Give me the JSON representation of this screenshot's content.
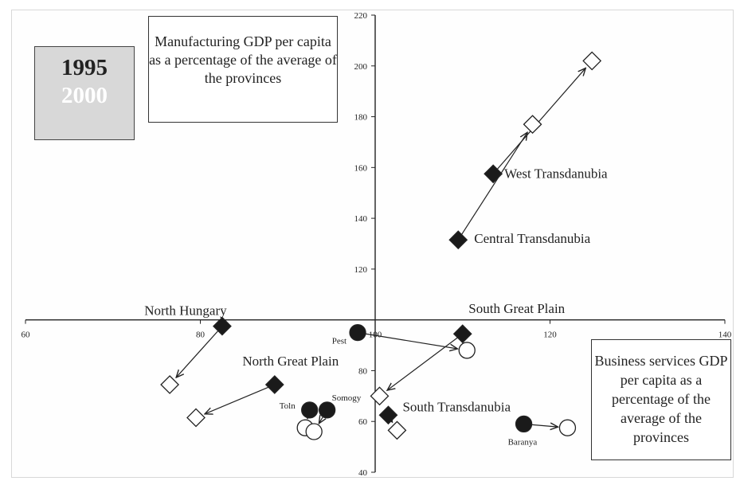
{
  "chart_data": {
    "type": "scatter",
    "x_axis": {
      "min": 60,
      "max": 140,
      "ticks": [
        60,
        80,
        100,
        120,
        140
      ]
    },
    "y_axis": {
      "min": 40,
      "max": 220,
      "ticks": [
        40,
        60,
        80,
        100,
        120,
        140,
        160,
        180,
        200,
        220
      ]
    },
    "axes_cross": {
      "x": 100,
      "y": 100
    },
    "legend": {
      "year_1995": "1995",
      "year_2000": "2000",
      "style_1995": "filled",
      "style_2000": "hollow white"
    },
    "y_title": "Manufacturing GDP per capita as a percentage of the average of the provinces",
    "x_title": "Business services GDP per capita as a percentage of the average of the provinces",
    "regions": [
      {
        "label": "West Transdanubia",
        "shape": "diamond",
        "x1995": 113.5,
        "y1995": 157.5,
        "x2000": 124.8,
        "y2000": 202,
        "via": [
          118,
          177
        ]
      },
      {
        "label": "Central Transdanubia",
        "shape": "diamond",
        "x1995": 109.5,
        "y1995": 131.5,
        "x2000": 118,
        "y2000": 177
      },
      {
        "label": "North Hungary",
        "shape": "diamond",
        "x1995": 82.5,
        "y1995": 97.5,
        "x2000": 76.5,
        "y2000": 74.5
      },
      {
        "label": "South Great Plain",
        "shape": "diamond",
        "x1995": 110,
        "y1995": 94.5,
        "x2000": 100.5,
        "y2000": 70
      },
      {
        "label": "North Great Plain",
        "shape": "diamond",
        "x1995": 88.5,
        "y1995": 74.5,
        "x2000": 79.5,
        "y2000": 61.5
      },
      {
        "label": "South Transdanubia",
        "shape": "diamond",
        "x1995": 101.5,
        "y1995": 62.5,
        "x2000": 102.5,
        "y2000": 56.5
      },
      {
        "label": "Pest",
        "shape": "circle",
        "x1995": 98,
        "y1995": 95,
        "x2000": 110.5,
        "y2000": 88
      },
      {
        "label": "Baranya",
        "shape": "circle",
        "x1995": 117,
        "y1995": 59,
        "x2000": 122,
        "y2000": 57.5
      },
      {
        "label": "Toln",
        "shape": "circle",
        "x1995": 92.5,
        "y1995": 64.5,
        "x2000": 92,
        "y2000": 57.5
      },
      {
        "label": "Somogy",
        "shape": "circle",
        "x1995": 94.5,
        "y1995": 64.5,
        "x2000": 93,
        "y2000": 56
      }
    ]
  }
}
